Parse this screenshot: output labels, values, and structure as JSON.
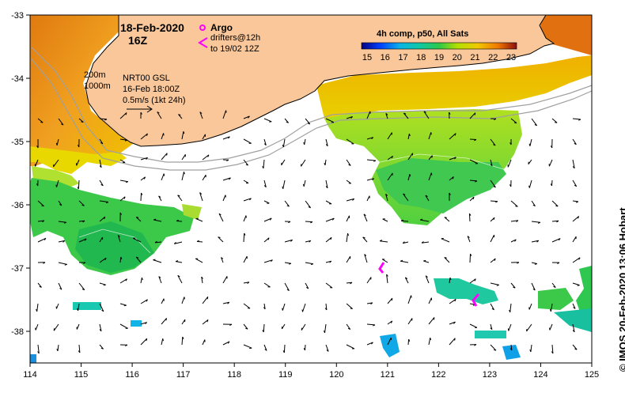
{
  "map": {
    "date": "18-Feb-2020",
    "hour": "16Z",
    "argo_label": "Argo",
    "drifters_label": "drifters@12h",
    "drifters_to": "to 19/02 12Z",
    "isobath_200": "200m",
    "isobath_1000": "1000m",
    "model": "NRT00 GSL",
    "model_time": "16-Feb 18:00Z",
    "vector_scale": "0.5m/s (1kt 24h)",
    "colorbar_title": "4h comp, p50, All Sats",
    "colorbar_ticks": [
      "15",
      "16",
      "17",
      "18",
      "19",
      "20",
      "21",
      "22",
      "23"
    ],
    "credit": "© IMOS 20-Feb-2020 13:06 Hobart",
    "lon_ticks": [
      "114",
      "115",
      "116",
      "117",
      "118",
      "119",
      "120",
      "121",
      "122",
      "123",
      "124",
      "125"
    ],
    "lat_ticks": [
      "-33",
      "-34",
      "-35",
      "-36",
      "-37",
      "-38"
    ],
    "colors": {
      "land": "#f9c79a",
      "sst_15": "#000080",
      "sst_17": "#0ab4e6",
      "sst_19": "#2ec84a",
      "sst_20": "#b4e000",
      "sst_21": "#f0c800",
      "sst_23": "#8b1010",
      "argo": "#ff00ff"
    }
  }
}
